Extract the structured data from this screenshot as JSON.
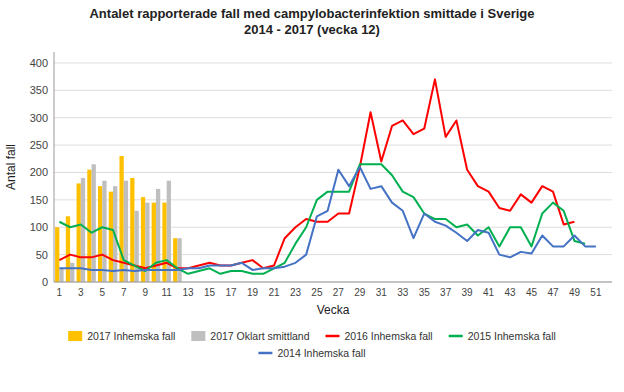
{
  "chart_data": {
    "type": "bar",
    "title": "Antalet rapporterade fall med campylobacterinfektion smittade i Sverige\n2014 - 2017 (vecka 12)",
    "x_label": "Vecka",
    "y_label": "Antal fall",
    "x": [
      1,
      2,
      3,
      4,
      5,
      6,
      7,
      8,
      9,
      10,
      11,
      12,
      13,
      14,
      15,
      16,
      17,
      18,
      19,
      20,
      21,
      22,
      23,
      24,
      25,
      26,
      27,
      28,
      29,
      30,
      31,
      32,
      33,
      34,
      35,
      36,
      37,
      38,
      39,
      40,
      41,
      42,
      43,
      44,
      45,
      46,
      47,
      48,
      49,
      50,
      51,
      52
    ],
    "xlim": [
      0.5,
      52.5
    ],
    "xticks": [
      1,
      3,
      5,
      7,
      9,
      11,
      13,
      15,
      17,
      19,
      21,
      23,
      25,
      27,
      29,
      31,
      33,
      35,
      37,
      39,
      41,
      43,
      45,
      47,
      49,
      51
    ],
    "ylim": [
      0,
      420
    ],
    "yticks": [
      0,
      50,
      100,
      150,
      200,
      250,
      300,
      350,
      400
    ],
    "grid": true,
    "legend": "bottom",
    "stacked": false,
    "series": [
      {
        "name": "2017 Inhemska fall",
        "type": "bar",
        "color": "#FFC000",
        "values": [
          100,
          120,
          180,
          205,
          175,
          165,
          230,
          190,
          155,
          145,
          145,
          80,
          null,
          null,
          null,
          null,
          null,
          null,
          null,
          null,
          null,
          null,
          null,
          null,
          null,
          null,
          null,
          null,
          null,
          null,
          null,
          null,
          null,
          null,
          null,
          null,
          null,
          null,
          null,
          null,
          null,
          null,
          null,
          null,
          null,
          null,
          null,
          null,
          null,
          null,
          null,
          null
        ]
      },
      {
        "name": "2017 Oklart smittland",
        "type": "bar",
        "color": "#BFBFBF",
        "values": [
          25,
          35,
          190,
          215,
          185,
          175,
          185,
          130,
          145,
          170,
          185,
          80,
          null,
          null,
          null,
          null,
          null,
          null,
          null,
          null,
          null,
          null,
          null,
          null,
          null,
          null,
          null,
          null,
          null,
          null,
          null,
          null,
          null,
          null,
          null,
          null,
          null,
          null,
          null,
          null,
          null,
          null,
          null,
          null,
          null,
          null,
          null,
          null,
          null,
          null,
          null,
          null
        ]
      },
      {
        "name": "2016 Inhemska fall",
        "type": "line",
        "color": "#FF0000",
        "values": [
          40,
          50,
          45,
          45,
          50,
          40,
          35,
          30,
          25,
          30,
          35,
          25,
          25,
          30,
          35,
          30,
          30,
          35,
          40,
          25,
          30,
          80,
          100,
          115,
          110,
          110,
          125,
          125,
          210,
          310,
          220,
          285,
          295,
          270,
          280,
          370,
          265,
          295,
          205,
          175,
          165,
          135,
          130,
          160,
          145,
          175,
          165,
          105,
          110,
          null,
          null,
          null
        ]
      },
      {
        "name": "2015 Inhemska fall",
        "type": "line",
        "color": "#00B050",
        "values": [
          110,
          100,
          105,
          90,
          100,
          95,
          40,
          30,
          20,
          35,
          40,
          25,
          15,
          20,
          25,
          15,
          20,
          20,
          15,
          15,
          25,
          35,
          70,
          100,
          150,
          165,
          165,
          165,
          215,
          215,
          215,
          195,
          165,
          155,
          125,
          115,
          115,
          100,
          105,
          85,
          100,
          65,
          100,
          100,
          65,
          125,
          145,
          130,
          75,
          70,
          null,
          null
        ]
      },
      {
        "name": "2014 Inhemska fall",
        "type": "line",
        "color": "#4472C4",
        "values": [
          25,
          25,
          25,
          22,
          22,
          20,
          22,
          20,
          22,
          22,
          22,
          22,
          25,
          25,
          30,
          30,
          30,
          35,
          22,
          25,
          25,
          28,
          35,
          50,
          120,
          130,
          205,
          175,
          210,
          170,
          175,
          145,
          130,
          80,
          125,
          110,
          103,
          90,
          75,
          95,
          90,
          50,
          45,
          55,
          52,
          85,
          65,
          65,
          85,
          65,
          65,
          null
        ]
      }
    ]
  }
}
